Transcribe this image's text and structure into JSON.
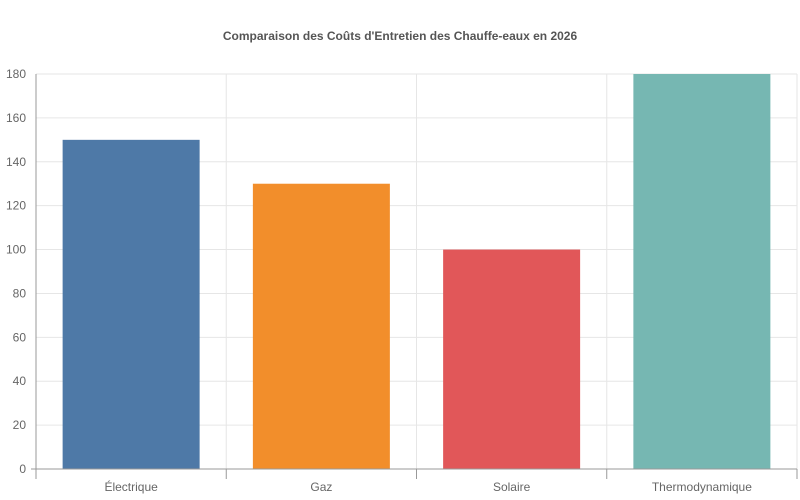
{
  "chart_data": {
    "type": "bar",
    "title": "Comparaison des Coûts d'Entretien des Chauffe-eaux en 2026",
    "xlabel": "",
    "ylabel": "",
    "categories": [
      "Électrique",
      "Gaz",
      "Solaire",
      "Thermodynamique"
    ],
    "values": [
      150,
      130,
      100,
      180
    ],
    "colors": [
      "#4e79a7",
      "#f28e2b",
      "#e15759",
      "#76b7b2"
    ],
    "ylim": [
      0,
      180
    ],
    "yticks": [
      0,
      20,
      40,
      60,
      80,
      100,
      120,
      140,
      160,
      180
    ],
    "grid": true,
    "legend": "none"
  }
}
